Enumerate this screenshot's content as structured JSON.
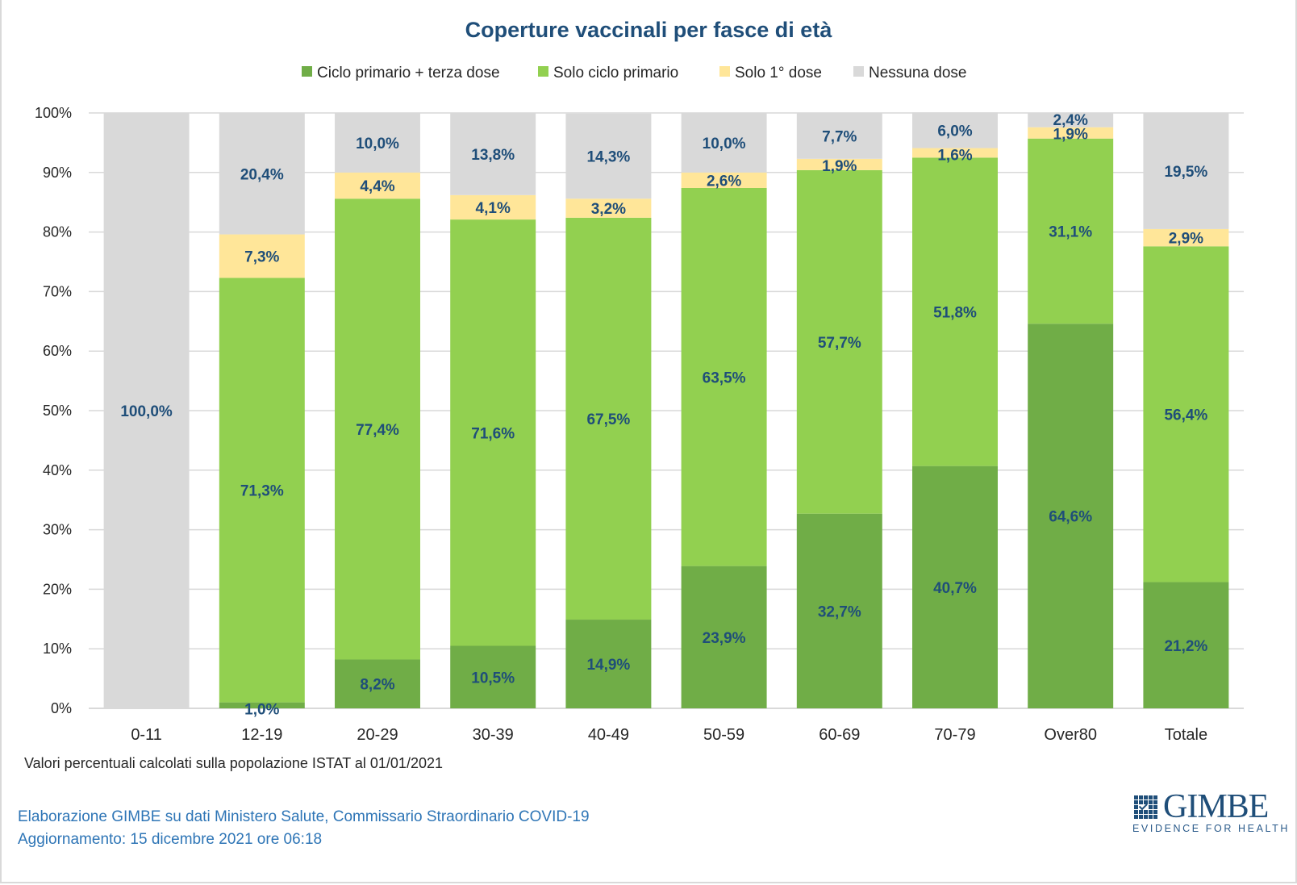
{
  "chart_data": {
    "type": "bar",
    "stacked": true,
    "title": "Coperture vaccinali per fasce di età",
    "xlabel": "",
    "ylabel": "",
    "ylim": [
      0,
      100
    ],
    "y_ticks": [
      "0%",
      "10%",
      "20%",
      "30%",
      "40%",
      "50%",
      "60%",
      "70%",
      "80%",
      "90%",
      "100%"
    ],
    "grid": true,
    "legend_position": "top",
    "categories": [
      "0-11",
      "12-19",
      "20-29",
      "30-39",
      "40-49",
      "50-59",
      "60-69",
      "70-79",
      "Over80",
      "Totale"
    ],
    "series": [
      {
        "name": "Ciclo primario + terza dose",
        "color": "#70ad47",
        "values": [
          0,
          1.0,
          8.2,
          10.5,
          14.9,
          23.9,
          32.7,
          40.7,
          64.6,
          21.2
        ],
        "labels": [
          null,
          "1,0%",
          "8,2%",
          "10,5%",
          "14,9%",
          "23,9%",
          "32,7%",
          "40,7%",
          "64,6%",
          "21,2%"
        ]
      },
      {
        "name": "Solo ciclo primario",
        "color": "#92d050",
        "values": [
          0,
          71.3,
          77.4,
          71.6,
          67.5,
          63.5,
          57.7,
          51.8,
          31.1,
          56.4
        ],
        "labels": [
          null,
          "71,3%",
          "77,4%",
          "71,6%",
          "67,5%",
          "63,5%",
          "57,7%",
          "51,8%",
          "31,1%",
          "56,4%"
        ]
      },
      {
        "name": "Solo 1° dose",
        "color": "#ffe699",
        "values": [
          0,
          7.3,
          4.4,
          4.1,
          3.2,
          2.6,
          1.9,
          1.6,
          1.9,
          2.9
        ],
        "labels": [
          null,
          "7,3%",
          "4,4%",
          "4,1%",
          "3,2%",
          "2,6%",
          "1,9%",
          "1,6%",
          "1,9%",
          "2,9%"
        ]
      },
      {
        "name": "Nessuna dose",
        "color": "#d9d9d9",
        "values": [
          100.0,
          20.4,
          10.0,
          13.8,
          14.3,
          10.0,
          7.7,
          6.0,
          2.4,
          19.5
        ],
        "labels": [
          "100,0%",
          "20,4%",
          "10,0%",
          "13,8%",
          "14,3%",
          "10,0%",
          "7,7%",
          "6,0%",
          "2,4%",
          "19,5%"
        ]
      }
    ]
  },
  "footnote": "Valori percentuali calcolati sulla popolazione ISTAT al 01/01/2021",
  "credits": {
    "line1": "Elaborazione GIMBE su dati Ministero Salute, Commissario Straordinario COVID-19",
    "line2": "Aggiornamento: 15 dicembre 2021 ore 06:18"
  },
  "logo": {
    "name": "GIMBE",
    "tagline": "EVIDENCE FOR HEALTH"
  }
}
